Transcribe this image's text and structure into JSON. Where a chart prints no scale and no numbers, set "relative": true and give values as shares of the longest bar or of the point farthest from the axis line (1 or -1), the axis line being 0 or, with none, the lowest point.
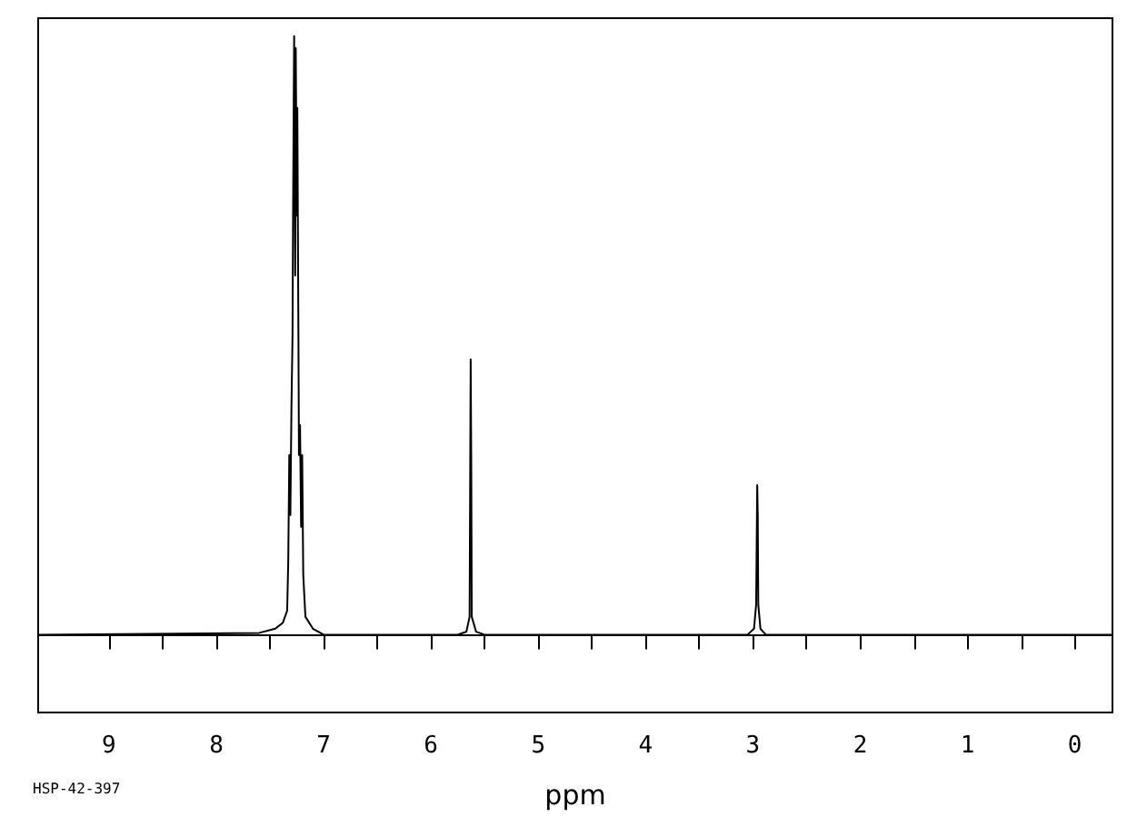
{
  "chart_data": {
    "type": "line",
    "relative": true,
    "xlabel": "ppm",
    "annotations": [
      "HSP-42-397"
    ],
    "xlim": [
      9.66,
      -0.35
    ],
    "xticks": [
      9,
      {
        "value": 8.5,
        "label": null
      },
      8,
      {
        "value": 7.5,
        "label": null
      },
      7,
      {
        "value": 6.5,
        "label": null
      },
      6,
      {
        "value": 5.5,
        "label": null
      },
      5,
      {
        "value": 4.5,
        "label": null
      },
      4,
      {
        "value": 3.5,
        "label": null
      },
      3,
      {
        "value": 2.5,
        "label": null
      },
      2,
      {
        "value": 1.5,
        "label": null
      },
      1,
      {
        "value": 0.5,
        "label": null
      },
      0
    ],
    "grid": false,
    "marker": "none",
    "line_style": "solid",
    "series": [
      {
        "color": "#000000",
        "x": [
          9.66,
          7.6,
          7.45,
          7.38,
          7.34,
          7.33,
          7.32,
          7.31,
          7.3,
          7.29,
          7.285,
          7.275,
          7.265,
          7.26,
          7.25,
          7.245,
          7.235,
          7.23,
          7.22,
          7.21,
          7.2,
          7.19,
          7.17,
          7.1,
          7.0,
          5.75,
          5.67,
          5.64,
          5.63,
          5.625,
          5.62,
          5.58,
          5.5,
          3.05,
          2.99,
          2.97,
          2.96,
          2.955,
          2.95,
          2.93,
          2.88,
          -0.35
        ],
        "values": [
          0,
          0.003,
          0.01,
          0.02,
          0.04,
          0.12,
          0.3,
          0.2,
          0.38,
          0.5,
          0.7,
          1.0,
          0.6,
          0.98,
          0.7,
          0.88,
          0.5,
          0.3,
          0.35,
          0.18,
          0.3,
          0.1,
          0.03,
          0.01,
          0,
          0,
          0.005,
          0.03,
          0.46,
          0.3,
          0.03,
          0.005,
          0,
          0,
          0.01,
          0.05,
          0.25,
          0.2,
          0.05,
          0.01,
          0,
          0
        ]
      }
    ]
  }
}
